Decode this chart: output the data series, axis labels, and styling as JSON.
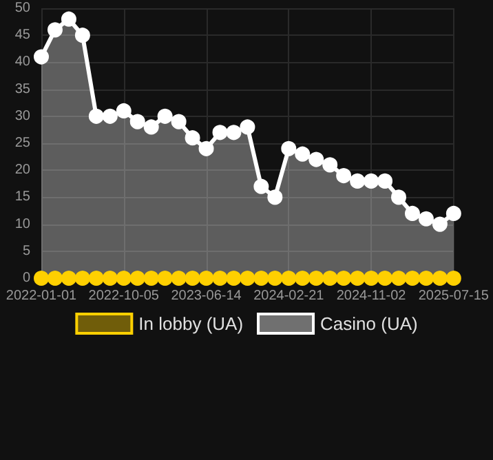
{
  "chart_data": {
    "type": "area",
    "categories": [
      "2022-01-01",
      null,
      null,
      null,
      null,
      null,
      "2022-10-05",
      null,
      null,
      null,
      null,
      null,
      "2023-06-14",
      null,
      null,
      null,
      null,
      null,
      "2024-02-21",
      null,
      null,
      null,
      null,
      null,
      "2024-11-02",
      null,
      null,
      null,
      null,
      null,
      "2025-07-15"
    ],
    "series": [
      {
        "name": "In lobby (UA)",
        "type": "line",
        "color": "#ffd000",
        "values": [
          0,
          0,
          0,
          0,
          0,
          0,
          0,
          0,
          0,
          0,
          0,
          0,
          0,
          0,
          0,
          0,
          0,
          0,
          0,
          0,
          0,
          0,
          0,
          0,
          0,
          0,
          0,
          0,
          0,
          0,
          0
        ]
      },
      {
        "name": "Casino (UA)",
        "color": "#ffffff",
        "values": [
          41,
          46,
          48,
          45,
          30,
          30,
          31,
          29,
          28,
          30,
          29,
          26,
          24,
          27,
          27,
          28,
          17,
          15,
          24,
          23,
          22,
          21,
          19,
          18,
          18,
          18,
          15,
          12,
          11,
          10,
          12
        ]
      }
    ],
    "ylim": [
      0,
      50
    ],
    "yticks": [
      0,
      5,
      10,
      15,
      20,
      25,
      30,
      35,
      40,
      45,
      50
    ],
    "grid": true,
    "legend": "bottom",
    "marker": "circle",
    "line_style": "solid"
  }
}
